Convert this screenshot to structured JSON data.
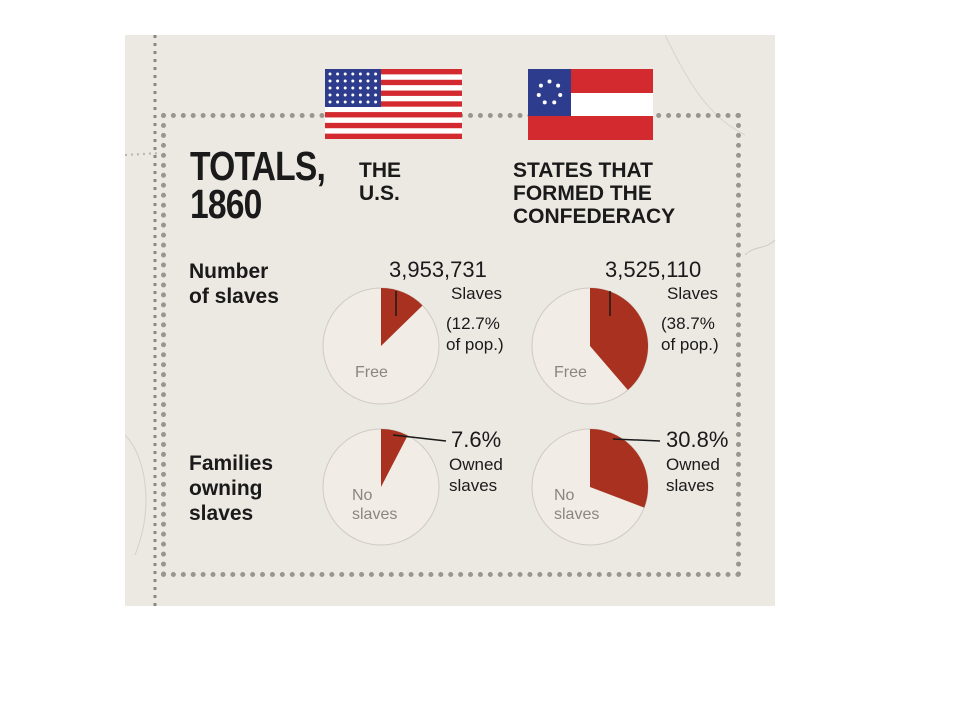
{
  "title_line1": "TOTALS,",
  "title_line2": "1860",
  "columns": {
    "us": {
      "line1": "THE",
      "line2": "U.S."
    },
    "confederacy": {
      "line1": "STATES THAT",
      "line2": "FORMED THE",
      "line3": "CONFEDERACY"
    }
  },
  "rows": {
    "slaves": {
      "line1": "Number",
      "line2": "of slaves"
    },
    "families": {
      "line1": "Families",
      "line2": "owning",
      "line3": "slaves"
    }
  },
  "annotations": {
    "us_slaves_count": "3,953,731",
    "us_slaves_word": "Slaves",
    "us_slaves_pct_1": "(12.7%",
    "us_slaves_pct_2": "of pop.)",
    "conf_slaves_count": "3,525,110",
    "conf_slaves_word": "Slaves",
    "conf_slaves_pct_1": "(38.7%",
    "conf_slaves_pct_2": "of pop.)",
    "us_fam_pct": "7.6%",
    "us_fam_1": "Owned",
    "us_fam_2": "slaves",
    "conf_fam_pct": "30.8%",
    "conf_fam_1": "Owned",
    "conf_fam_2": "slaves",
    "free_label": "Free",
    "no_slaves_1": "No",
    "no_slaves_2": "slaves"
  },
  "colors": {
    "slice": "#a8321f",
    "rest": "#f1ede6",
    "flag_red": "#d22a2e",
    "flag_blue": "#2d3c8c"
  },
  "chart_data": [
    {
      "type": "pie",
      "categories": [
        "Slaves",
        "Free"
      ],
      "values": [
        12.7,
        87.3
      ]
    },
    {
      "type": "pie",
      "categories": [
        "Slaves",
        "Free"
      ],
      "values": [
        38.7,
        61.3
      ]
    },
    {
      "type": "pie",
      "categories": [
        "Owned slaves",
        "No slaves"
      ],
      "values": [
        7.6,
        92.4
      ]
    },
    {
      "type": "pie",
      "categories": [
        "Owned slaves",
        "No slaves"
      ],
      "values": [
        30.8,
        69.2
      ]
    }
  ]
}
